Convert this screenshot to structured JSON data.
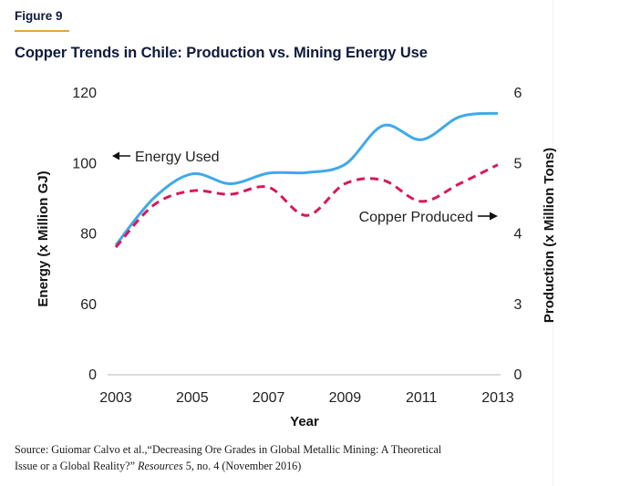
{
  "figure_label": "Figure 9",
  "source": {
    "prefix": "Source: Guiomar Calvo et al.,“Decreasing Ore Grades in Global Metallic Mining: A Theoretical Issue or a Global Reality?” ",
    "journal": "Resources",
    "suffix": " 5, no. 4 (November 2016)"
  },
  "colors": {
    "energy": "#3fa9ea",
    "copper": "#d9185a",
    "baseline": "#b8b8b8",
    "accent_rule": "#e8a43a",
    "title": "#0f1a3c"
  },
  "chart_data": {
    "type": "line",
    "title": "Copper Trends in Chile: Production vs. Mining Energy Use",
    "xlabel": "Year",
    "ylabel_left": "Energy (x Million GJ)",
    "ylabel_right": "Production (x Million Tons)",
    "x": [
      2003,
      2004,
      2005,
      2006,
      2007,
      2008,
      2009,
      2010,
      2011,
      2012,
      2013
    ],
    "x_ticks": [
      "2003",
      "2005",
      "2007",
      "2009",
      "2011",
      "2013"
    ],
    "y_left_ticks": [
      "0",
      "60",
      "80",
      "100",
      "120"
    ],
    "y_right_ticks": [
      "0",
      "3",
      "4",
      "5",
      "6"
    ],
    "y_left_range": [
      0,
      120
    ],
    "y_left_break": [
      0,
      60
    ],
    "y_right_range": [
      0,
      6
    ],
    "y_right_break": [
      0,
      3
    ],
    "grid": false,
    "series": [
      {
        "name": "Energy Used",
        "axis": "left",
        "style": "solid",
        "values": [
          76.6,
          90,
          96.8,
          94,
          97,
          97.2,
          99.5,
          110.5,
          106.5,
          113,
          114
        ]
      },
      {
        "name": "Copper Produced",
        "axis": "right",
        "style": "dashed",
        "values": [
          3.8,
          4.4,
          4.6,
          4.55,
          4.65,
          4.25,
          4.7,
          4.75,
          4.45,
          4.7,
          4.97
        ]
      }
    ],
    "annotations": [
      {
        "text": "Energy Used",
        "arrow": "left",
        "series": "Energy Used"
      },
      {
        "text": "Copper Produced",
        "arrow": "right",
        "series": "Copper Produced"
      }
    ]
  }
}
